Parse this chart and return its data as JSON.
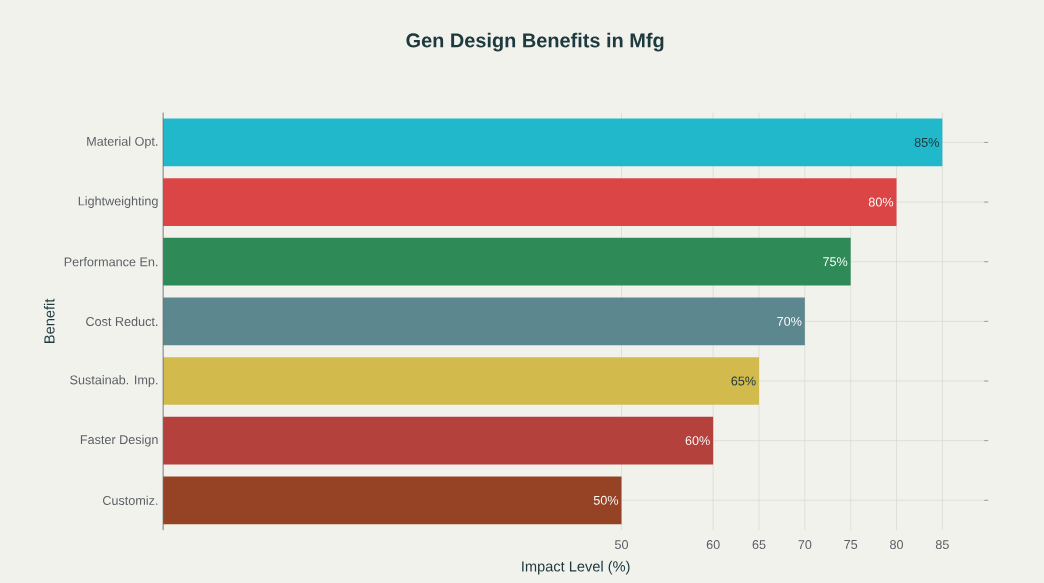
{
  "chart_data": {
    "type": "bar",
    "orientation": "horizontal",
    "title": "Gen Design Benefits in Mfg",
    "xlabel": "Impact Level (%)",
    "ylabel": "Benefit",
    "categories": [
      "Material Opt.",
      "Lightweighting",
      "Performance En.",
      "Cost Reduct.",
      "Sustainab. Imp.",
      "Faster Design",
      "Customiz."
    ],
    "values": [
      85,
      80,
      75,
      70,
      65,
      60,
      50
    ],
    "colors": [
      "#21b8cc",
      "#db4545",
      "#2e8b57",
      "#5d878f",
      "#d2ba4c",
      "#b4413c",
      "#964325"
    ],
    "value_labels": [
      "85%",
      "80%",
      "75%",
      "70%",
      "65%",
      "60%",
      "50%"
    ],
    "xlim": [
      0,
      90
    ],
    "xticks": [
      50,
      60,
      65,
      70,
      75,
      80,
      85
    ],
    "grid": true
  }
}
